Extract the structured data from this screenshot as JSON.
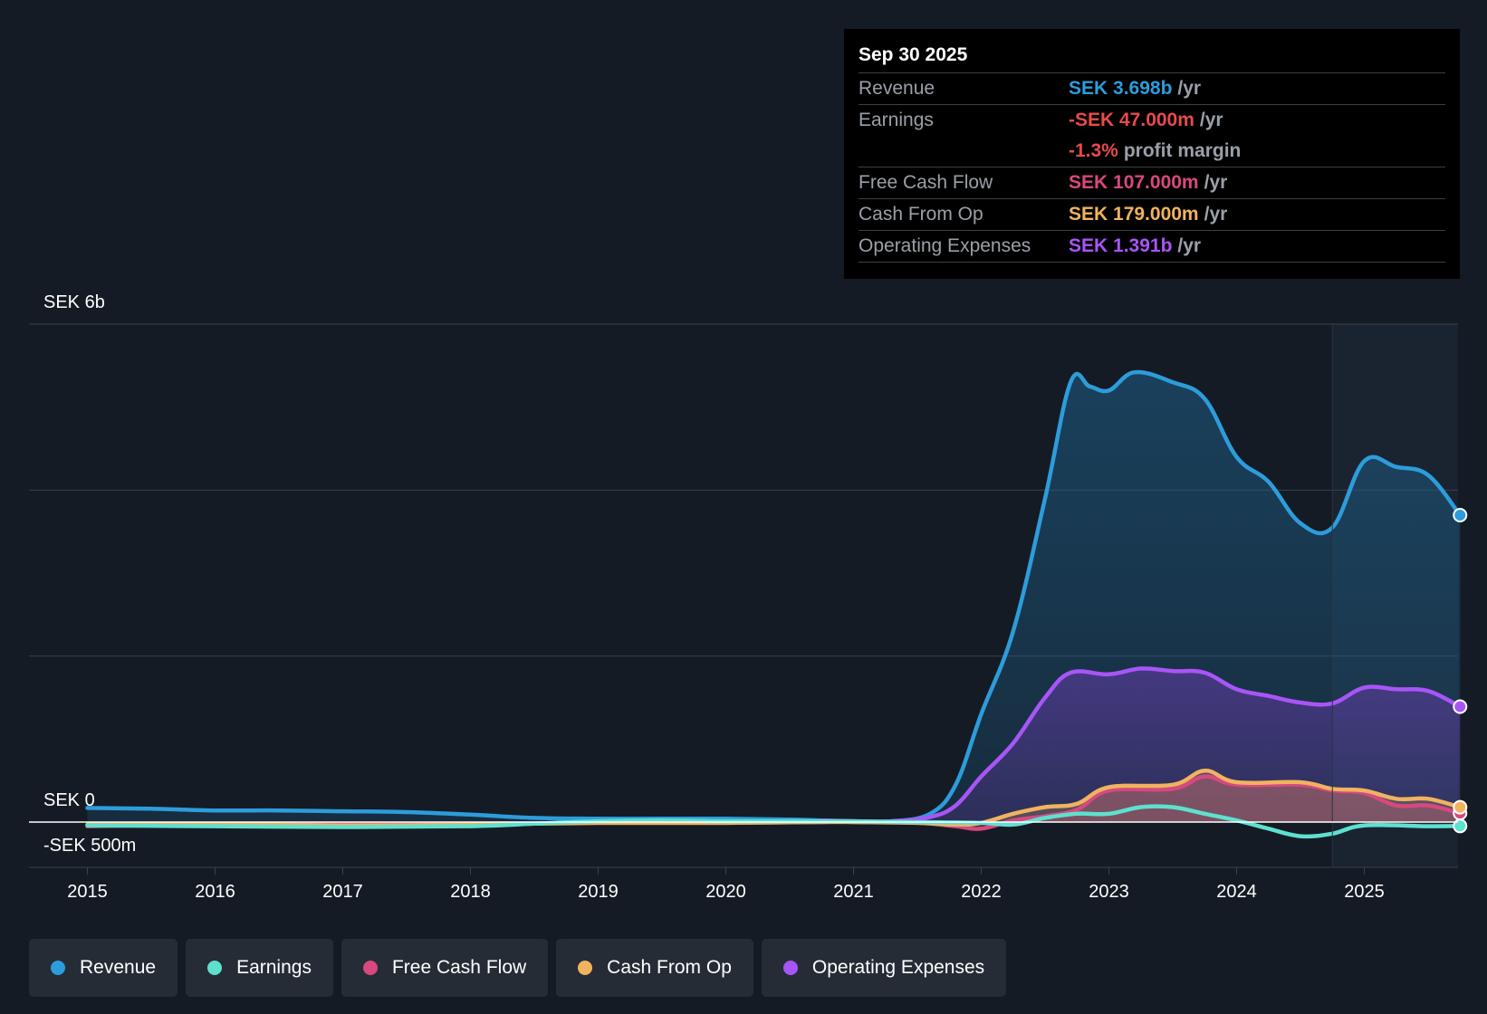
{
  "tooltip": {
    "date": "Sep 30 2025",
    "rows": [
      {
        "label": "Revenue",
        "value": "SEK 3.698b",
        "unit": "/yr",
        "color": "#2d9cdb"
      },
      {
        "label": "Earnings",
        "value": "-SEK 47.000m",
        "unit": "/yr",
        "color": "#e64b4b"
      },
      {
        "label": "",
        "value": "-1.3%",
        "unit": "profit margin",
        "color": "#e64b4b"
      },
      {
        "label": "Free Cash Flow",
        "value": "SEK 107.000m",
        "unit": "/yr",
        "color": "#d6497f"
      },
      {
        "label": "Cash From Op",
        "value": "SEK 179.000m",
        "unit": "/yr",
        "color": "#f0b35e"
      },
      {
        "label": "Operating Expenses",
        "value": "SEK 1.391b",
        "unit": "/yr",
        "color": "#a855f7"
      }
    ]
  },
  "legend": [
    {
      "label": "Revenue",
      "color": "#2d9cdb"
    },
    {
      "label": "Earnings",
      "color": "#5ee0cf"
    },
    {
      "label": "Free Cash Flow",
      "color": "#d6497f"
    },
    {
      "label": "Cash From Op",
      "color": "#f0b35e"
    },
    {
      "label": "Operating Expenses",
      "color": "#a855f7"
    }
  ],
  "chart_data": {
    "type": "area",
    "title": "",
    "xlabel": "",
    "ylabel": "",
    "y_top_label": "SEK 6b",
    "y_zero_label": "SEK 0",
    "y_bottom_label": "-SEK 500m",
    "ylim": [
      -0.5,
      6.0
    ],
    "y_units": "SEK b",
    "xlim": [
      2014.55,
      2025.75
    ],
    "x_ticks": [
      2015,
      2016,
      2017,
      2018,
      2019,
      2020,
      2021,
      2022,
      2023,
      2024,
      2025
    ],
    "x_tick_labels": [
      "2015",
      "2016",
      "2017",
      "2018",
      "2019",
      "2020",
      "2021",
      "2022",
      "2023",
      "2024",
      "2025"
    ],
    "highlight_start": 2024.75,
    "series": [
      {
        "name": "Revenue",
        "color": "#2d9cdb",
        "fill": true,
        "points": [
          [
            2015,
            0.17
          ],
          [
            2015.5,
            0.16
          ],
          [
            2016,
            0.14
          ],
          [
            2016.5,
            0.14
          ],
          [
            2017,
            0.13
          ],
          [
            2017.5,
            0.12
          ],
          [
            2018,
            0.09
          ],
          [
            2018.5,
            0.05
          ],
          [
            2019,
            0.04
          ],
          [
            2019.5,
            0.04
          ],
          [
            2020,
            0.04
          ],
          [
            2020.5,
            0.03
          ],
          [
            2020.75,
            0.02
          ],
          [
            2021,
            0.01
          ],
          [
            2021.3,
            0.01
          ],
          [
            2021.6,
            0.1
          ],
          [
            2021.8,
            0.45
          ],
          [
            2022,
            1.3
          ],
          [
            2022.25,
            2.3
          ],
          [
            2022.5,
            3.9
          ],
          [
            2022.7,
            5.3
          ],
          [
            2022.85,
            5.25
          ],
          [
            2023,
            5.2
          ],
          [
            2023.2,
            5.42
          ],
          [
            2023.5,
            5.3
          ],
          [
            2023.75,
            5.1
          ],
          [
            2024,
            4.4
          ],
          [
            2024.25,
            4.1
          ],
          [
            2024.5,
            3.6
          ],
          [
            2024.75,
            3.55
          ],
          [
            2025,
            4.35
          ],
          [
            2025.25,
            4.28
          ],
          [
            2025.5,
            4.18
          ],
          [
            2025.75,
            3.698
          ]
        ]
      },
      {
        "name": "Operating Expenses",
        "color": "#a855f7",
        "fill": true,
        "points": [
          [
            2020.75,
            0.02
          ],
          [
            2021,
            0.01
          ],
          [
            2021.3,
            0.01
          ],
          [
            2021.6,
            0.06
          ],
          [
            2021.8,
            0.2
          ],
          [
            2022,
            0.55
          ],
          [
            2022.25,
            0.95
          ],
          [
            2022.5,
            1.5
          ],
          [
            2022.7,
            1.8
          ],
          [
            2023,
            1.78
          ],
          [
            2023.25,
            1.85
          ],
          [
            2023.5,
            1.82
          ],
          [
            2023.75,
            1.8
          ],
          [
            2024,
            1.6
          ],
          [
            2024.25,
            1.52
          ],
          [
            2024.5,
            1.44
          ],
          [
            2024.75,
            1.43
          ],
          [
            2025,
            1.62
          ],
          [
            2025.25,
            1.6
          ],
          [
            2025.5,
            1.58
          ],
          [
            2025.75,
            1.391
          ]
        ]
      },
      {
        "name": "Free Cash Flow",
        "color": "#d6497f",
        "fill": true,
        "points": [
          [
            2015,
            -0.05
          ],
          [
            2016,
            -0.03
          ],
          [
            2017,
            -0.03
          ],
          [
            2018,
            -0.02
          ],
          [
            2019,
            -0.01
          ],
          [
            2020,
            -0.01
          ],
          [
            2020.75,
            0.0
          ],
          [
            2021,
            0.0
          ],
          [
            2021.5,
            -0.01
          ],
          [
            2021.8,
            -0.05
          ],
          [
            2022,
            -0.08
          ],
          [
            2022.25,
            0.02
          ],
          [
            2022.5,
            0.07
          ],
          [
            2022.75,
            0.15
          ],
          [
            2023,
            0.38
          ],
          [
            2023.5,
            0.4
          ],
          [
            2023.75,
            0.55
          ],
          [
            2024,
            0.45
          ],
          [
            2024.5,
            0.45
          ],
          [
            2024.75,
            0.38
          ],
          [
            2025,
            0.35
          ],
          [
            2025.25,
            0.2
          ],
          [
            2025.5,
            0.2
          ],
          [
            2025.75,
            0.107
          ]
        ]
      },
      {
        "name": "Cash From Op",
        "color": "#f0b35e",
        "fill": true,
        "points": [
          [
            2015,
            -0.03
          ],
          [
            2016,
            -0.02
          ],
          [
            2017,
            -0.04
          ],
          [
            2018,
            -0.03
          ],
          [
            2019,
            -0.01
          ],
          [
            2020,
            -0.01
          ],
          [
            2020.75,
            0.0
          ],
          [
            2021,
            0.0
          ],
          [
            2021.5,
            -0.01
          ],
          [
            2021.8,
            -0.03
          ],
          [
            2022,
            -0.01
          ],
          [
            2022.25,
            0.1
          ],
          [
            2022.5,
            0.18
          ],
          [
            2022.75,
            0.22
          ],
          [
            2023,
            0.42
          ],
          [
            2023.5,
            0.45
          ],
          [
            2023.75,
            0.62
          ],
          [
            2024,
            0.48
          ],
          [
            2024.5,
            0.48
          ],
          [
            2024.75,
            0.4
          ],
          [
            2025,
            0.38
          ],
          [
            2025.25,
            0.28
          ],
          [
            2025.5,
            0.28
          ],
          [
            2025.75,
            0.179
          ]
        ]
      },
      {
        "name": "Earnings",
        "color": "#5ee0cf",
        "fill": false,
        "points": [
          [
            2015,
            -0.04
          ],
          [
            2016,
            -0.05
          ],
          [
            2017,
            -0.06
          ],
          [
            2018,
            -0.05
          ],
          [
            2018.5,
            -0.02
          ],
          [
            2019,
            0.01
          ],
          [
            2019.5,
            0.02
          ],
          [
            2020,
            0.01
          ],
          [
            2020.75,
            0.01
          ],
          [
            2021,
            0.01
          ],
          [
            2021.5,
            0.0
          ],
          [
            2022,
            -0.01
          ],
          [
            2022.25,
            -0.03
          ],
          [
            2022.5,
            0.05
          ],
          [
            2022.75,
            0.1
          ],
          [
            2023,
            0.1
          ],
          [
            2023.25,
            0.18
          ],
          [
            2023.5,
            0.18
          ],
          [
            2023.75,
            0.1
          ],
          [
            2024,
            0.02
          ],
          [
            2024.25,
            -0.08
          ],
          [
            2024.5,
            -0.17
          ],
          [
            2024.75,
            -0.14
          ],
          [
            2025,
            -0.04
          ],
          [
            2025.5,
            -0.05
          ],
          [
            2025.75,
            -0.047
          ]
        ]
      }
    ]
  }
}
